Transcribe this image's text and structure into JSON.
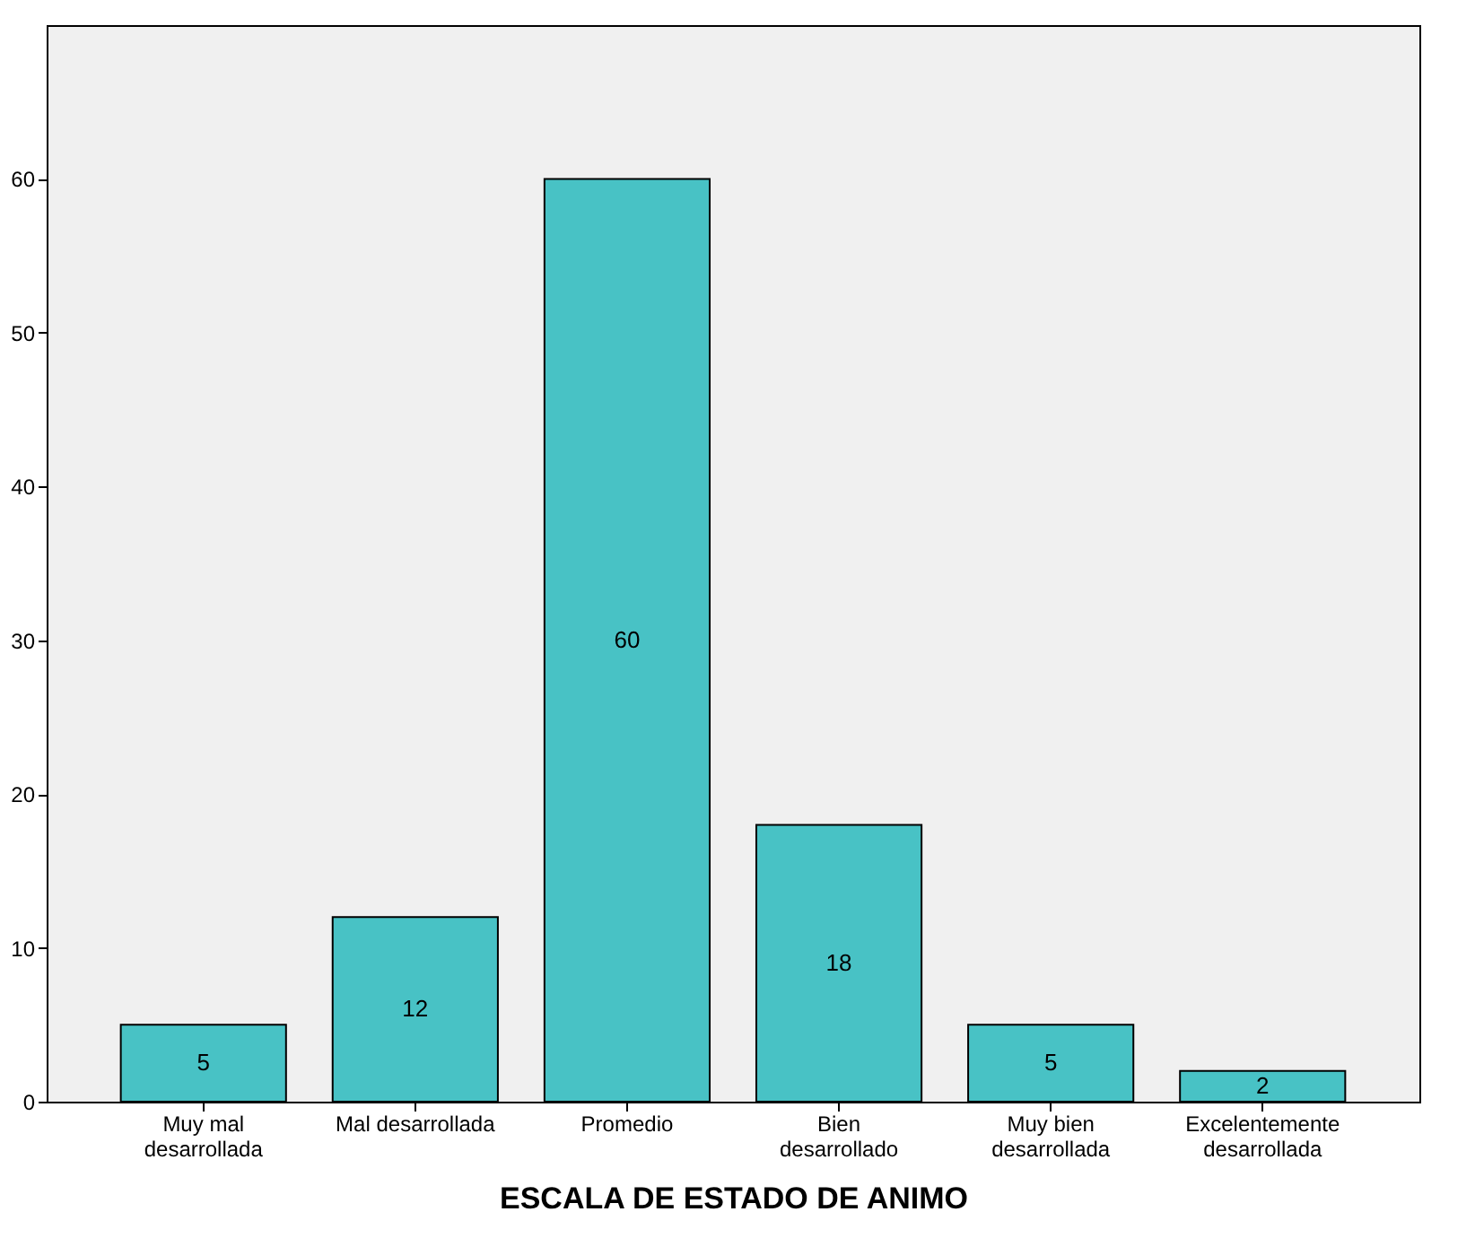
{
  "chart_data": {
    "type": "bar",
    "xlabel": "ESCALA DE ESTADO DE ANIMO",
    "categories": [
      "Muy mal desarrollada",
      "Mal desarrollada",
      "Promedio",
      "Bien desarrollado",
      "Muy bien desarrollada",
      "Excelentemente desarrollada"
    ],
    "values": [
      5,
      12,
      60,
      18,
      5,
      2
    ],
    "color": "#48c2c5",
    "data_labels": true,
    "ylim": [
      0,
      70
    ],
    "yticks": [
      0,
      10,
      20,
      30,
      40,
      50,
      60
    ],
    "grid": false
  }
}
